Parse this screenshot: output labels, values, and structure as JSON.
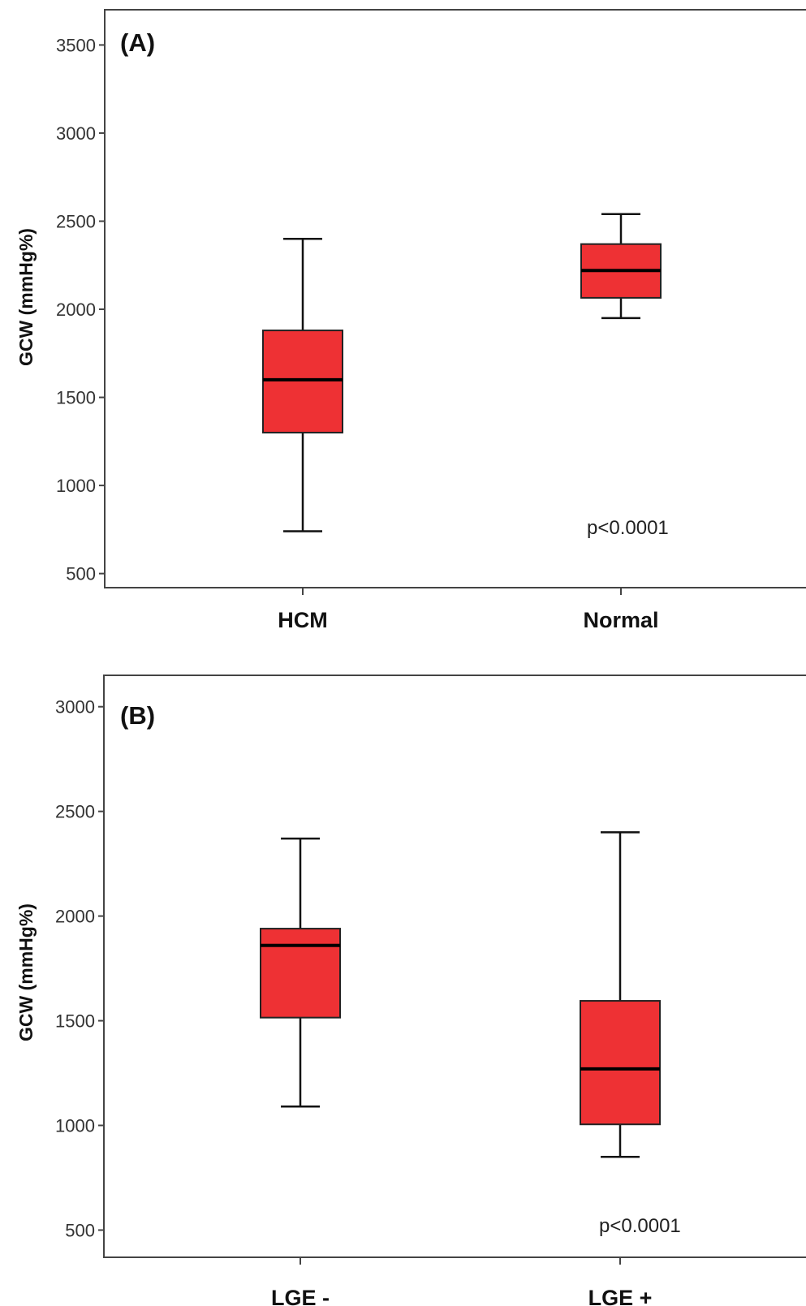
{
  "chart_data": [
    {
      "type": "box",
      "panel_label": "(A)",
      "ylabel": "GCW (mmHg%)",
      "xlabel": "",
      "ylim": [
        420,
        3700
      ],
      "yticks": [
        500,
        1000,
        1500,
        2000,
        2500,
        3000,
        3500
      ],
      "categories": [
        "HCM",
        "Normal"
      ],
      "boxes": [
        {
          "category": "HCM",
          "whisker_low": 740,
          "q1": 1300,
          "median": 1600,
          "q3": 1880,
          "whisker_high": 2400
        },
        {
          "category": "Normal",
          "whisker_low": 1950,
          "q1": 2065,
          "median": 2220,
          "q3": 2370,
          "whisker_high": 2540
        }
      ],
      "annotation": "p<0.0001",
      "box_color": "#ee3134",
      "grid": false
    },
    {
      "type": "box",
      "panel_label": "(B)",
      "ylabel": "GCW (mmHg%)",
      "xlabel": "",
      "ylim": [
        370,
        3150
      ],
      "yticks": [
        500,
        1000,
        1500,
        2000,
        2500,
        3000
      ],
      "categories": [
        "LGE -",
        "LGE +"
      ],
      "boxes": [
        {
          "category": "LGE -",
          "whisker_low": 1090,
          "q1": 1515,
          "median": 1860,
          "q3": 1940,
          "whisker_high": 2370
        },
        {
          "category": "LGE +",
          "whisker_low": 850,
          "q1": 1005,
          "median": 1270,
          "q3": 1595,
          "whisker_high": 2400
        }
      ],
      "annotation": "p<0.0001",
      "box_color": "#ee3134",
      "grid": false
    }
  ]
}
